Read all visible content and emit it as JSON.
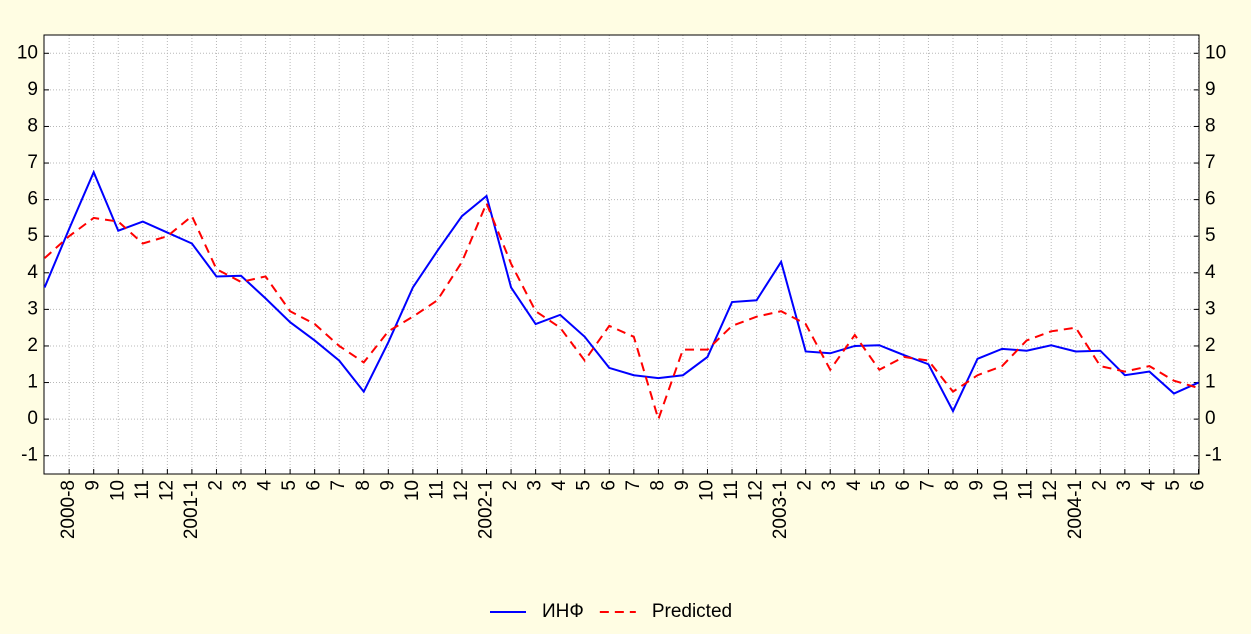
{
  "chart_data": {
    "type": "line",
    "categories": [
      null,
      "2000-8",
      "9",
      "10",
      "11",
      "12",
      "2001-1",
      "2",
      "3",
      "4",
      "5",
      "6",
      "7",
      "8",
      "9",
      "10",
      "11",
      "12",
      "2002-1",
      "2",
      "3",
      "4",
      "5",
      "6",
      "7",
      "8",
      "9",
      "10",
      "11",
      "12",
      "2003-1",
      "2",
      "3",
      "4",
      "5",
      "6",
      "7",
      "8",
      "9",
      "10",
      "11",
      "12",
      "2004-1",
      "2",
      "3",
      "4",
      "5",
      "6"
    ],
    "series": [
      {
        "name": "ИНФ",
        "color": "#0000ff",
        "dash": "solid",
        "values": [
          3.6,
          5.2,
          6.75,
          5.15,
          5.4,
          5.1,
          4.8,
          3.9,
          3.92,
          3.3,
          2.65,
          2.15,
          1.6,
          0.75,
          2.1,
          3.6,
          4.6,
          5.55,
          6.1,
          3.6,
          2.6,
          2.85,
          2.25,
          1.4,
          1.2,
          1.12,
          1.2,
          1.7,
          3.2,
          3.25,
          4.3,
          1.85,
          1.8,
          2.0,
          2.02,
          1.75,
          1.5,
          0.22,
          1.65,
          1.92,
          1.87,
          2.02,
          1.85,
          1.87,
          1.2,
          1.3,
          0.7,
          1.0
        ]
      },
      {
        "name": "Predicted",
        "color": "#ff0000",
        "dash": "dashed",
        "values": [
          4.4,
          5.0,
          5.5,
          5.4,
          4.8,
          5.0,
          5.55,
          4.1,
          3.75,
          3.9,
          2.95,
          2.6,
          2.0,
          1.55,
          2.4,
          2.8,
          3.25,
          4.3,
          5.9,
          4.25,
          2.95,
          2.5,
          1.6,
          2.55,
          2.25,
          0.0,
          1.9,
          1.9,
          2.55,
          2.8,
          2.95,
          2.6,
          1.35,
          2.3,
          1.35,
          1.7,
          1.6,
          0.75,
          1.2,
          1.45,
          2.15,
          2.4,
          2.5,
          1.45,
          1.3,
          1.45,
          1.05,
          0.85
        ]
      }
    ],
    "ylim": [
      -1.5,
      10.5
    ],
    "yticks": [
      -1,
      0,
      1,
      2,
      3,
      4,
      5,
      6,
      7,
      8,
      9,
      10
    ],
    "grid": true,
    "legend": "bottom"
  }
}
